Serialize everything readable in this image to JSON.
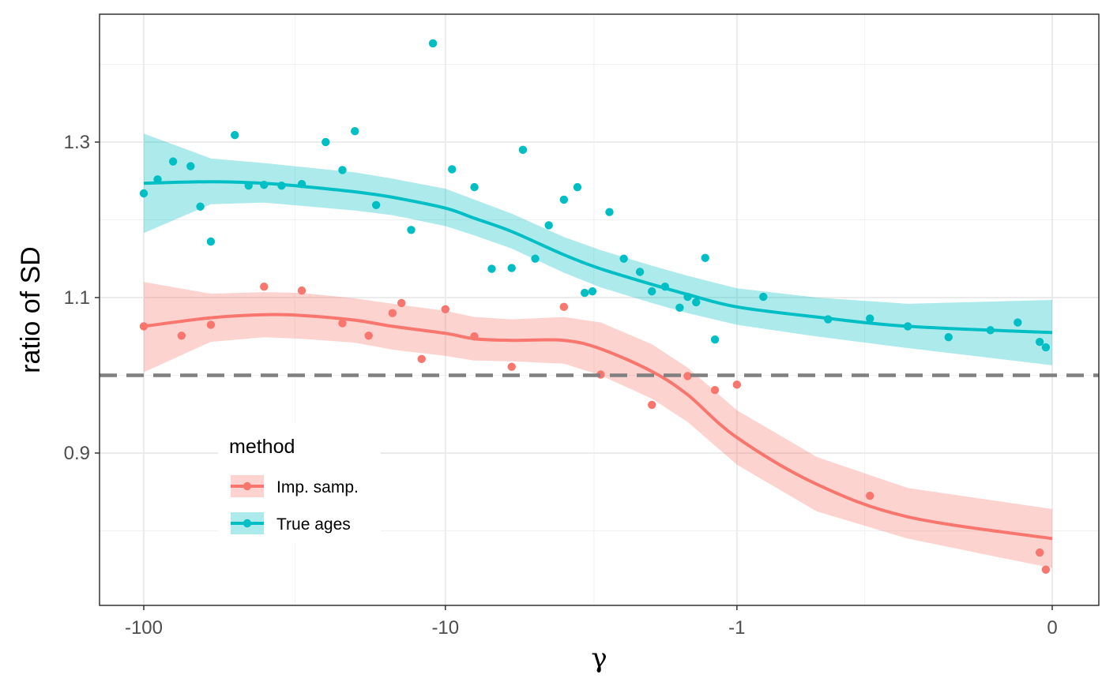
{
  "chart_data": {
    "type": "scatter",
    "title": "",
    "xlabel": "γ",
    "ylabel": "ratio of SD",
    "x_scale": "pseudo-log (sign-preserving)",
    "x_ticks": [
      "-100",
      "-10",
      "-1",
      "0"
    ],
    "x_tick_values": [
      -100,
      -10,
      -1,
      0
    ],
    "y_ticks": [
      "0.9",
      "1.1",
      "1.3"
    ],
    "y_tick_values": [
      0.9,
      1.1,
      1.3
    ],
    "xlim": [
      -150,
      0.3
    ],
    "ylim": [
      0.81,
      1.44
    ],
    "grid": true,
    "reference_line": {
      "y": 1.0,
      "style": "dashed",
      "color": "#808080"
    },
    "legend": {
      "title": "method",
      "position": "bottom-left inside"
    },
    "series": [
      {
        "name": "Imp. samp.",
        "color": "#F8766D",
        "points": [
          [
            -100,
            1.063
          ],
          [
            -75,
            1.051
          ],
          [
            -60,
            1.065
          ],
          [
            -40,
            1.114
          ],
          [
            -30,
            1.109
          ],
          [
            -22,
            1.067
          ],
          [
            -18,
            1.051
          ],
          [
            -15,
            1.08
          ],
          [
            -14,
            1.093
          ],
          [
            -12,
            1.021
          ],
          [
            -10,
            1.085
          ],
          [
            -8,
            1.05
          ],
          [
            -6,
            1.011
          ],
          [
            -4,
            1.088
          ],
          [
            -3,
            1.001
          ],
          [
            -2,
            0.962
          ],
          [
            -1.5,
            0.999
          ],
          [
            -1.2,
            0.981
          ],
          [
            -1,
            0.988
          ],
          [
            -0.3,
            0.845
          ],
          [
            -0.01,
            0.772
          ],
          [
            -0.005,
            0.75
          ]
        ],
        "smooth": [
          [
            -100,
            1.063
          ],
          [
            -60,
            1.074
          ],
          [
            -40,
            1.078
          ],
          [
            -30,
            1.077
          ],
          [
            -20,
            1.071
          ],
          [
            -15,
            1.063
          ],
          [
            -10,
            1.054
          ],
          [
            -8,
            1.047
          ],
          [
            -6,
            1.045
          ],
          [
            -4,
            1.045
          ],
          [
            -3,
            1.034
          ],
          [
            -2,
            1.005
          ],
          [
            -1.5,
            0.975
          ],
          [
            -1,
            0.92
          ],
          [
            -0.5,
            0.86
          ],
          [
            -0.2,
            0.818
          ],
          [
            0,
            0.79
          ]
        ],
        "band_lower": [
          [
            -100,
            1.004
          ],
          [
            -60,
            1.043
          ],
          [
            -40,
            1.049
          ],
          [
            -30,
            1.047
          ],
          [
            -20,
            1.042
          ],
          [
            -15,
            1.033
          ],
          [
            -10,
            1.025
          ],
          [
            -8,
            1.019
          ],
          [
            -6,
            1.018
          ],
          [
            -4,
            1.015
          ],
          [
            -3,
            1.0
          ],
          [
            -2,
            0.97
          ],
          [
            -1.5,
            0.94
          ],
          [
            -1,
            0.885
          ],
          [
            -0.5,
            0.825
          ],
          [
            -0.2,
            0.79
          ],
          [
            0,
            0.752
          ]
        ],
        "band_upper": [
          [
            -100,
            1.12
          ],
          [
            -60,
            1.105
          ],
          [
            -40,
            1.107
          ],
          [
            -30,
            1.106
          ],
          [
            -20,
            1.099
          ],
          [
            -15,
            1.092
          ],
          [
            -10,
            1.083
          ],
          [
            -8,
            1.075
          ],
          [
            -6,
            1.072
          ],
          [
            -4,
            1.075
          ],
          [
            -3,
            1.068
          ],
          [
            -2,
            1.04
          ],
          [
            -1.5,
            1.01
          ],
          [
            -1,
            0.955
          ],
          [
            -0.5,
            0.895
          ],
          [
            -0.2,
            0.855
          ],
          [
            0,
            0.828
          ]
        ]
      },
      {
        "name": "True ages",
        "color": "#00BFC4",
        "points": [
          [
            -100,
            1.234
          ],
          [
            -90,
            1.252
          ],
          [
            -80,
            1.275
          ],
          [
            -70,
            1.269
          ],
          [
            -65,
            1.217
          ],
          [
            -60,
            1.172
          ],
          [
            -50,
            1.309
          ],
          [
            -45,
            1.244
          ],
          [
            -40,
            1.245
          ],
          [
            -35,
            1.244
          ],
          [
            -30,
            1.246
          ],
          [
            -25,
            1.3
          ],
          [
            -22,
            1.264
          ],
          [
            -20,
            1.314
          ],
          [
            -17,
            1.219
          ],
          [
            -13,
            1.187
          ],
          [
            -11,
            1.427
          ],
          [
            -9.5,
            1.265
          ],
          [
            -8,
            1.242
          ],
          [
            -7,
            1.137
          ],
          [
            -6,
            1.138
          ],
          [
            -5.5,
            1.29
          ],
          [
            -5,
            1.15
          ],
          [
            -4.5,
            1.193
          ],
          [
            -4,
            1.226
          ],
          [
            -3.6,
            1.242
          ],
          [
            -3.4,
            1.106
          ],
          [
            -3.2,
            1.108
          ],
          [
            -2.8,
            1.21
          ],
          [
            -2.5,
            1.15
          ],
          [
            -2.2,
            1.133
          ],
          [
            -2,
            1.108
          ],
          [
            -1.8,
            1.114
          ],
          [
            -1.6,
            1.087
          ],
          [
            -1.5,
            1.101
          ],
          [
            -1.4,
            1.094
          ],
          [
            -1.3,
            1.151
          ],
          [
            -1.2,
            1.046
          ],
          [
            -0.8,
            1.101
          ],
          [
            -0.45,
            1.072
          ],
          [
            -0.3,
            1.073
          ],
          [
            -0.2,
            1.063
          ],
          [
            -0.12,
            1.049
          ],
          [
            -0.06,
            1.058
          ],
          [
            -0.03,
            1.068
          ],
          [
            -0.01,
            1.043
          ],
          [
            -0.005,
            1.036
          ]
        ],
        "smooth": [
          [
            -100,
            1.247
          ],
          [
            -60,
            1.249
          ],
          [
            -40,
            1.247
          ],
          [
            -30,
            1.243
          ],
          [
            -20,
            1.236
          ],
          [
            -15,
            1.229
          ],
          [
            -10,
            1.215
          ],
          [
            -8,
            1.202
          ],
          [
            -6,
            1.185
          ],
          [
            -4,
            1.155
          ],
          [
            -3,
            1.137
          ],
          [
            -2,
            1.117
          ],
          [
            -1.5,
            1.104
          ],
          [
            -1,
            1.088
          ],
          [
            -0.5,
            1.075
          ],
          [
            -0.2,
            1.063
          ],
          [
            0,
            1.055
          ]
        ],
        "band_lower": [
          [
            -100,
            1.183
          ],
          [
            -60,
            1.22
          ],
          [
            -40,
            1.222
          ],
          [
            -30,
            1.218
          ],
          [
            -20,
            1.212
          ],
          [
            -15,
            1.206
          ],
          [
            -10,
            1.192
          ],
          [
            -8,
            1.18
          ],
          [
            -6,
            1.163
          ],
          [
            -4,
            1.132
          ],
          [
            -3,
            1.113
          ],
          [
            -2,
            1.093
          ],
          [
            -1.5,
            1.08
          ],
          [
            -1,
            1.065
          ],
          [
            -0.5,
            1.05
          ],
          [
            -0.2,
            1.035
          ],
          [
            0,
            1.013
          ]
        ],
        "band_upper": [
          [
            -100,
            1.311
          ],
          [
            -60,
            1.279
          ],
          [
            -40,
            1.273
          ],
          [
            -30,
            1.268
          ],
          [
            -20,
            1.261
          ],
          [
            -15,
            1.253
          ],
          [
            -10,
            1.24
          ],
          [
            -8,
            1.226
          ],
          [
            -6,
            1.208
          ],
          [
            -4,
            1.178
          ],
          [
            -3,
            1.161
          ],
          [
            -2,
            1.141
          ],
          [
            -1.5,
            1.128
          ],
          [
            -1,
            1.112
          ],
          [
            -0.5,
            1.1
          ],
          [
            -0.2,
            1.092
          ],
          [
            0,
            1.097
          ]
        ]
      }
    ]
  }
}
